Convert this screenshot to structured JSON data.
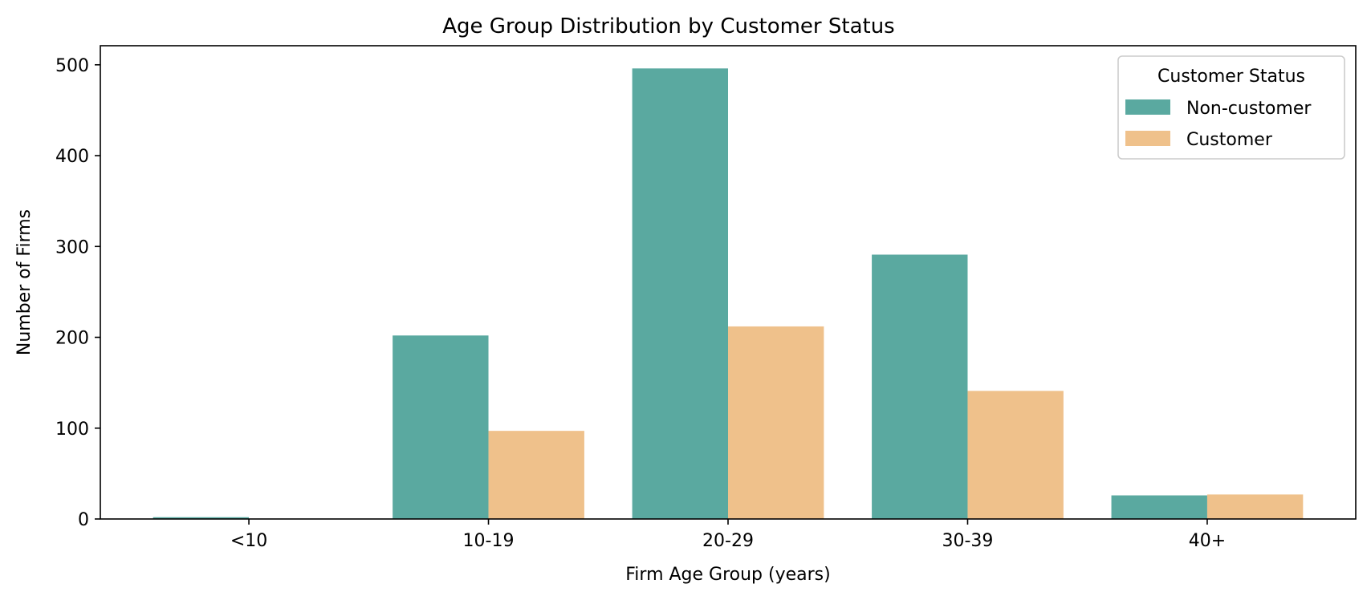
{
  "chart_data": {
    "type": "bar",
    "title": "Age Group Distribution by Customer Status",
    "xlabel": "Firm Age Group (years)",
    "ylabel": "Number of Firms",
    "categories": [
      "<10",
      "10-19",
      "20-29",
      "30-39",
      "40+"
    ],
    "ylim": [
      0,
      521
    ],
    "yticks": [
      0,
      100,
      200,
      300,
      400,
      500
    ],
    "grid": false,
    "legend": {
      "title": "Customer Status",
      "placement": "top-right"
    },
    "series": [
      {
        "name": "Non-customer",
        "color": "#5aa9a0",
        "values": [
          2,
          202,
          496,
          291,
          26
        ]
      },
      {
        "name": "Customer",
        "color": "#efc18b",
        "values": [
          0,
          97,
          212,
          141,
          27
        ]
      }
    ]
  }
}
